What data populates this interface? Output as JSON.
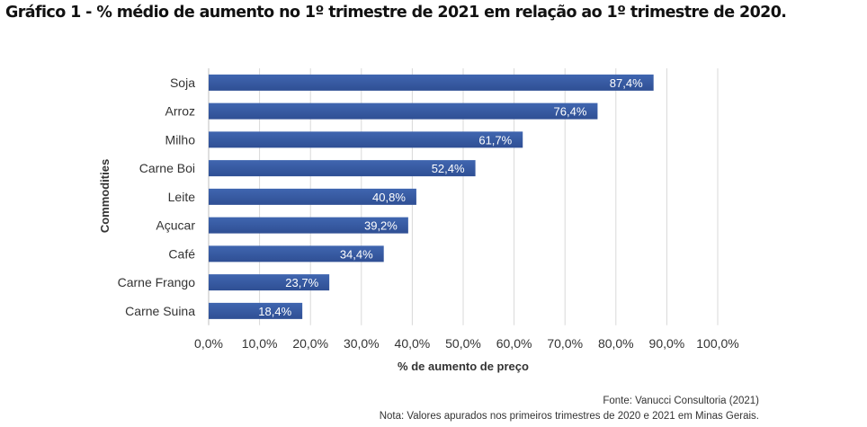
{
  "title": "Gráfico 1 - % médio de aumento no 1º trimestre de 2021 em relação ao 1º trimestre de 2020.",
  "chart_data": {
    "type": "bar",
    "orientation": "horizontal",
    "categories": [
      "Soja",
      "Arroz",
      "Milho",
      "Carne Boi",
      "Leite",
      "Açucar",
      "Café",
      "Carne Frango",
      "Carne Suina"
    ],
    "values": [
      87.4,
      76.4,
      61.7,
      52.4,
      40.8,
      39.2,
      34.4,
      23.7,
      18.4
    ],
    "value_labels": [
      "87,4%",
      "76,4%",
      "61,7%",
      "52,4%",
      "40,8%",
      "39,2%",
      "34,4%",
      "23,7%",
      "18,4%"
    ],
    "xlabel": "% de aumento de preço",
    "ylabel": "Commodities",
    "xlim": [
      0,
      100
    ],
    "x_ticks": [
      0,
      10,
      20,
      30,
      40,
      50,
      60,
      70,
      80,
      90,
      100
    ],
    "x_tick_labels": [
      "0,0%",
      "10,0%",
      "20,0%",
      "30,0%",
      "40,0%",
      "50,0%",
      "60,0%",
      "70,0%",
      "80,0%",
      "90,0%",
      "100,0%"
    ],
    "grid": true,
    "bar_color": "#4066b0",
    "bar_gradient_end": "#2f4f94"
  },
  "footer": {
    "source": "Fonte: Vanucci Consultoria (2021)",
    "note": "Nota: Valores apurados nos primeiros trimestres de 2020 e 2021 em Minas Gerais."
  }
}
